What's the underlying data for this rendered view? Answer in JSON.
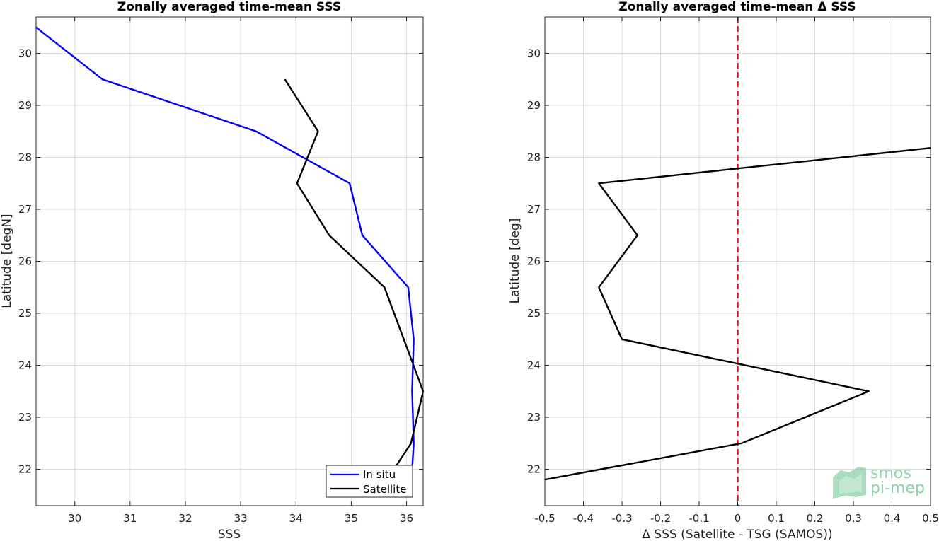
{
  "colors": {
    "in_situ": "#0000ff",
    "satellite": "#000000",
    "zero_line": "#e31a1c",
    "grid": "#dcdcdc",
    "logo": "#8fd0ad"
  },
  "logo": {
    "line1": "smos",
    "line2": "pi-mep"
  },
  "chart_data": [
    {
      "type": "line",
      "title": "Zonally averaged time-mean SSS",
      "xlabel": "SSS",
      "ylabel": "Latitude [degN]",
      "xlim": [
        29.3,
        36.3
      ],
      "ylim": [
        21.3,
        30.7
      ],
      "xticks": [
        "30",
        "31",
        "32",
        "33",
        "34",
        "35",
        "36"
      ],
      "yticks": [
        "22",
        "23",
        "24",
        "25",
        "26",
        "27",
        "28",
        "29",
        "30"
      ],
      "grid": true,
      "legend": {
        "placement": "bottom-right",
        "entries": [
          "In situ",
          "Satellite"
        ]
      },
      "series": [
        {
          "name": "In situ",
          "color": "#0000ff",
          "points": [
            [
              29.3,
              30.5
            ],
            [
              30.5,
              29.5
            ],
            [
              33.28,
              28.5
            ],
            [
              34.97,
              27.5
            ],
            [
              35.2,
              26.5
            ],
            [
              36.03,
              25.5
            ],
            [
              36.13,
              24.5
            ],
            [
              36.1,
              23.5
            ],
            [
              36.13,
              22.5
            ],
            [
              36.1,
              22.0
            ]
          ]
        },
        {
          "name": "Satellite",
          "color": "#000000",
          "points": [
            [
              33.8,
              29.5
            ],
            [
              34.4,
              28.5
            ],
            [
              34.02,
              27.5
            ],
            [
              34.6,
              26.5
            ],
            [
              35.6,
              25.5
            ],
            [
              35.95,
              24.5
            ],
            [
              36.3,
              23.5
            ],
            [
              36.08,
              22.5
            ],
            [
              35.65,
              21.8
            ]
          ]
        }
      ]
    },
    {
      "type": "line",
      "title": "Zonally averaged time-mean Δ SSS",
      "xlabel": "Δ SSS (Satellite - TSG (SAMOS))",
      "ylabel": "Latitude [deg]",
      "xlim": [
        -0.5,
        0.5
      ],
      "ylim": [
        21.3,
        30.7
      ],
      "xticks": [
        "-0.5",
        "-0.4",
        "-0.3",
        "-0.2",
        "-0.1",
        "0",
        "0.1",
        "0.2",
        "0.3",
        "0.4",
        "0.5"
      ],
      "yticks": [
        "22",
        "23",
        "24",
        "25",
        "26",
        "27",
        "28",
        "29",
        "30"
      ],
      "grid": true,
      "series": [
        {
          "color": "#000000",
          "points": [
            [
              0.5,
              28.18
            ],
            [
              -0.36,
              27.5
            ],
            [
              -0.26,
              26.5
            ],
            [
              -0.36,
              25.5
            ],
            [
              -0.3,
              24.5
            ],
            [
              0.34,
              23.5
            ],
            [
              0.01,
              22.5
            ],
            [
              -0.5,
              21.8
            ]
          ]
        }
      ],
      "reference_line": {
        "x": 0,
        "style": "dashed",
        "color": "#e31a1c"
      }
    }
  ]
}
